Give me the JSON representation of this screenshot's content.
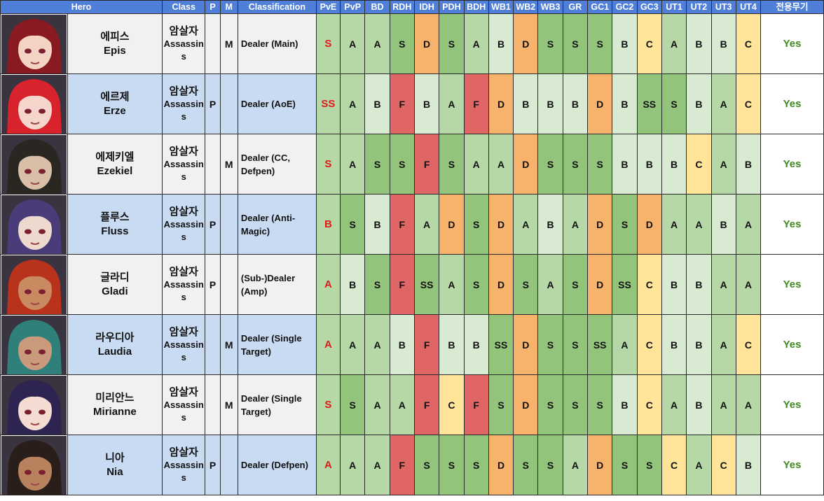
{
  "columns": [
    {
      "key": "hero",
      "label": "Hero"
    },
    {
      "key": "class",
      "label": "Class"
    },
    {
      "key": "p",
      "label": "P"
    },
    {
      "key": "m",
      "label": "M"
    },
    {
      "key": "classification",
      "label": "Classification"
    },
    {
      "key": "pve",
      "label": "PvE"
    },
    {
      "key": "pvp",
      "label": "PvP"
    },
    {
      "key": "bd",
      "label": "BD"
    },
    {
      "key": "rdh",
      "label": "RDH"
    },
    {
      "key": "idh",
      "label": "IDH"
    },
    {
      "key": "pdh",
      "label": "PDH"
    },
    {
      "key": "bdh",
      "label": "BDH"
    },
    {
      "key": "wb1",
      "label": "WB1"
    },
    {
      "key": "wb2",
      "label": "WB2"
    },
    {
      "key": "wb3",
      "label": "WB3"
    },
    {
      "key": "gr",
      "label": "GR"
    },
    {
      "key": "gc1",
      "label": "GC1"
    },
    {
      "key": "gc2",
      "label": "GC2"
    },
    {
      "key": "gc3",
      "label": "GC3"
    },
    {
      "key": "ut1",
      "label": "UT1"
    },
    {
      "key": "ut2",
      "label": "UT2"
    },
    {
      "key": "ut3",
      "label": "UT3"
    },
    {
      "key": "ut4",
      "label": "UT4"
    },
    {
      "key": "exclusive",
      "label": "전용무기"
    }
  ],
  "grade_colors": {
    "SS": "#92c47c",
    "S": "#92c47c",
    "A": "#b5d8a6",
    "B": "#d8ead2",
    "C": "#ffe49a",
    "D": "#f7b26b",
    "F": "#e06666"
  },
  "pve_cell_color": "#b5d8a6",
  "heroes": [
    {
      "portrait": "epis-portrait",
      "hair": "#8a1a22",
      "skin": "#f3d3c4",
      "name_ko": "에피스",
      "name_en": "Epis",
      "class_ko": "암살자",
      "class_en_1": "Assassin",
      "class_en_2": "s",
      "p": "",
      "m": "M",
      "type_1": "Dealer (Main)",
      "type_2": "",
      "grades": [
        "S",
        "A",
        "A",
        "S",
        "D",
        "S",
        "A",
        "B",
        "D",
        "S",
        "S",
        "S",
        "B",
        "C",
        "A",
        "B",
        "B",
        "C"
      ],
      "exclusive": "Yes"
    },
    {
      "portrait": "erze-portrait",
      "hair": "#d8232c",
      "skin": "#f6d6cc",
      "name_ko": "에르제",
      "name_en": "Erze",
      "class_ko": "암살자",
      "class_en_1": "Assassin",
      "class_en_2": "s",
      "p": "P",
      "m": "",
      "type_1": "Dealer (AoE)",
      "type_2": "",
      "grades": [
        "SS",
        "A",
        "B",
        "F",
        "B",
        "A",
        "F",
        "D",
        "B",
        "B",
        "B",
        "D",
        "B",
        "SS",
        "S",
        "B",
        "A",
        "C"
      ],
      "exclusive": "Yes"
    },
    {
      "portrait": "ezekiel-portrait",
      "hair": "#2a2622",
      "skin": "#d9bfa8",
      "name_ko": "에제키엘",
      "name_en": "Ezekiel",
      "class_ko": "암살자",
      "class_en_1": "Assassin",
      "class_en_2": "s",
      "p": "",
      "m": "M",
      "type_1": "Dealer (CC,",
      "type_2": "Defpen)",
      "grades": [
        "S",
        "A",
        "S",
        "S",
        "F",
        "S",
        "A",
        "A",
        "D",
        "S",
        "S",
        "S",
        "B",
        "B",
        "B",
        "C",
        "A",
        "B"
      ],
      "exclusive": "Yes"
    },
    {
      "portrait": "fluss-portrait",
      "hair": "#4a3c78",
      "skin": "#eed9cf",
      "name_ko": "플루스",
      "name_en": "Fluss",
      "class_ko": "암살자",
      "class_en_1": "Assassin",
      "class_en_2": "s",
      "p": "P",
      "m": "",
      "type_1": "Dealer (Anti-",
      "type_2": "Magic)",
      "grades": [
        "B",
        "S",
        "B",
        "F",
        "A",
        "D",
        "S",
        "D",
        "A",
        "B",
        "A",
        "D",
        "S",
        "D",
        "A",
        "A",
        "B",
        "A"
      ],
      "exclusive": "Yes"
    },
    {
      "portrait": "gladi-portrait",
      "hair": "#b8321c",
      "skin": "#c98a62",
      "name_ko": "글라디",
      "name_en": "Gladi",
      "class_ko": "암살자",
      "class_en_1": "Assassin",
      "class_en_2": "s",
      "p": "P",
      "m": "",
      "type_1": "(Sub-)Dealer",
      "type_2": "(Amp)",
      "grades": [
        "A",
        "B",
        "S",
        "F",
        "SS",
        "A",
        "S",
        "D",
        "S",
        "A",
        "S",
        "D",
        "SS",
        "C",
        "B",
        "B",
        "A",
        "A"
      ],
      "exclusive": "Yes"
    },
    {
      "portrait": "laudia-portrait",
      "hair": "#2f7f7a",
      "skin": "#c99a7c",
      "name_ko": "라우디아",
      "name_en": "Laudia",
      "class_ko": "암살자",
      "class_en_1": "Assassin",
      "class_en_2": "s",
      "p": "",
      "m": "M",
      "type_1": "Dealer (Single",
      "type_2": "Target)",
      "grades": [
        "A",
        "A",
        "A",
        "B",
        "F",
        "B",
        "B",
        "SS",
        "D",
        "S",
        "S",
        "SS",
        "A",
        "C",
        "B",
        "B",
        "A",
        "C"
      ],
      "exclusive": "Yes"
    },
    {
      "portrait": "mirianne-portrait",
      "hair": "#2e2452",
      "skin": "#f4dcd2",
      "name_ko": "미리안느",
      "name_en": "Mirianne",
      "class_ko": "암살자",
      "class_en_1": "Assassin",
      "class_en_2": "s",
      "p": "",
      "m": "M",
      "type_1": "Dealer (Single",
      "type_2": "Target)",
      "grades": [
        "S",
        "S",
        "A",
        "A",
        "F",
        "C",
        "F",
        "S",
        "D",
        "S",
        "S",
        "S",
        "B",
        "C",
        "A",
        "B",
        "A",
        "A"
      ],
      "exclusive": "Yes"
    },
    {
      "portrait": "nia-portrait",
      "hair": "#2a1e1a",
      "skin": "#b8825e",
      "name_ko": "니아",
      "name_en": "Nia",
      "class_ko": "암살자",
      "class_en_1": "Assassin",
      "class_en_2": "s",
      "p": "P",
      "m": "",
      "type_1": "Dealer (Defpen)",
      "type_2": "",
      "grades": [
        "A",
        "A",
        "A",
        "F",
        "S",
        "S",
        "S",
        "D",
        "S",
        "S",
        "A",
        "D",
        "S",
        "S",
        "C",
        "A",
        "C",
        "B"
      ],
      "exclusive": "Yes"
    }
  ]
}
